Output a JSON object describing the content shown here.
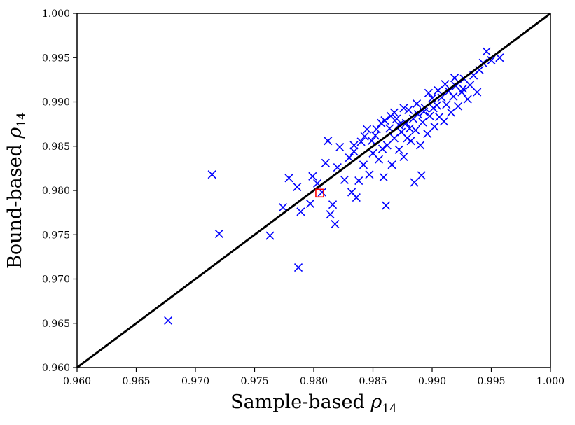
{
  "chart_data": {
    "type": "scatter",
    "title": "",
    "xlabel": {
      "main": "Sample-based ",
      "symbol": "ρ",
      "sub": "14"
    },
    "ylabel": {
      "main": "Bound-based ",
      "symbol": "ρ",
      "sub": "14"
    },
    "xlim": [
      0.96,
      1.0
    ],
    "ylim": [
      0.96,
      1.0
    ],
    "x_ticks": [
      "0.960",
      "0.965",
      "0.970",
      "0.975",
      "0.980",
      "0.985",
      "0.990",
      "0.995",
      "1.000"
    ],
    "y_ticks": [
      "0.960",
      "0.965",
      "0.970",
      "0.975",
      "0.980",
      "0.985",
      "0.990",
      "0.995",
      "1.000"
    ],
    "grid": false,
    "legend": "none",
    "reference_line": {
      "from": [
        0.96,
        0.96
      ],
      "to": [
        1.0,
        1.0
      ],
      "color": "#000000"
    },
    "series": [
      {
        "marker": "x",
        "color": "#0000ff",
        "points": [
          [
            0.9677,
            0.9653
          ],
          [
            0.9714,
            0.9818
          ],
          [
            0.972,
            0.9751
          ],
          [
            0.9763,
            0.9749
          ],
          [
            0.9774,
            0.9781
          ],
          [
            0.9779,
            0.9814
          ],
          [
            0.9787,
            0.9713
          ],
          [
            0.9786,
            0.9804
          ],
          [
            0.9789,
            0.9776
          ],
          [
            0.9797,
            0.9785
          ],
          [
            0.9799,
            0.9816
          ],
          [
            0.9803,
            0.9808
          ],
          [
            0.9807,
            0.9798
          ],
          [
            0.981,
            0.9831
          ],
          [
            0.9812,
            0.9856
          ],
          [
            0.9814,
            0.9773
          ],
          [
            0.9816,
            0.9784
          ],
          [
            0.9818,
            0.9762
          ],
          [
            0.982,
            0.9826
          ],
          [
            0.9822,
            0.9849
          ],
          [
            0.9826,
            0.9812
          ],
          [
            0.983,
            0.9837
          ],
          [
            0.9832,
            0.9798
          ],
          [
            0.9834,
            0.9844
          ],
          [
            0.9836,
            0.9792
          ],
          [
            0.9838,
            0.9811
          ],
          [
            0.984,
            0.9855
          ],
          [
            0.9842,
            0.9829
          ],
          [
            0.9845,
            0.9869
          ],
          [
            0.9847,
            0.9818
          ],
          [
            0.985,
            0.9842
          ],
          [
            0.9852,
            0.9862
          ],
          [
            0.9855,
            0.9835
          ],
          [
            0.9857,
            0.9876
          ],
          [
            0.9859,
            0.9815
          ],
          [
            0.9861,
            0.9783
          ],
          [
            0.9862,
            0.9851
          ],
          [
            0.9864,
            0.987
          ],
          [
            0.9866,
            0.9829
          ],
          [
            0.9868,
            0.9859
          ],
          [
            0.987,
            0.9881
          ],
          [
            0.9872,
            0.9846
          ],
          [
            0.9874,
            0.9866
          ],
          [
            0.9876,
            0.9838
          ],
          [
            0.9878,
            0.9876
          ],
          [
            0.988,
            0.9891
          ],
          [
            0.9882,
            0.9856
          ],
          [
            0.9884,
            0.9881
          ],
          [
            0.9885,
            0.9809
          ],
          [
            0.9886,
            0.9868
          ],
          [
            0.9888,
            0.9886
          ],
          [
            0.989,
            0.9851
          ],
          [
            0.9891,
            0.9817
          ],
          [
            0.9892,
            0.9877
          ],
          [
            0.9894,
            0.9893
          ],
          [
            0.9896,
            0.9864
          ],
          [
            0.9898,
            0.9884
          ],
          [
            0.99,
            0.9904
          ],
          [
            0.9902,
            0.9872
          ],
          [
            0.9904,
            0.9896
          ],
          [
            0.9906,
            0.9883
          ],
          [
            0.9908,
            0.9905
          ],
          [
            0.991,
            0.9878
          ],
          [
            0.9912,
            0.9897
          ],
          [
            0.9914,
            0.9912
          ],
          [
            0.9916,
            0.9888
          ],
          [
            0.9918,
            0.9906
          ],
          [
            0.992,
            0.9918
          ],
          [
            0.9922,
            0.9895
          ],
          [
            0.9925,
            0.9911
          ],
          [
            0.9927,
            0.9926
          ],
          [
            0.993,
            0.9903
          ],
          [
            0.9932,
            0.9919
          ],
          [
            0.9935,
            0.993
          ],
          [
            0.9938,
            0.9911
          ],
          [
            0.994,
            0.9936
          ],
          [
            0.9943,
            0.9944
          ],
          [
            0.9946,
            0.9957
          ],
          [
            0.995,
            0.9947
          ],
          [
            0.9957,
            0.995
          ],
          [
            0.986,
            0.9879
          ],
          [
            0.9872,
            0.9874
          ],
          [
            0.9881,
            0.987
          ],
          [
            0.9893,
            0.9889
          ],
          [
            0.9901,
            0.9893
          ],
          [
            0.9853,
            0.9869
          ],
          [
            0.9868,
            0.9888
          ],
          [
            0.9879,
            0.9859
          ],
          [
            0.9897,
            0.991
          ],
          [
            0.9911,
            0.992
          ],
          [
            0.9843,
            0.9861
          ],
          [
            0.9858,
            0.9847
          ],
          [
            0.9887,
            0.9898
          ],
          [
            0.9905,
            0.9913
          ],
          [
            0.9919,
            0.9927
          ],
          [
            0.9876,
            0.9893
          ],
          [
            0.9865,
            0.9884
          ],
          [
            0.9849,
            0.9856
          ],
          [
            0.9834,
            0.9851
          ],
          [
            0.9926,
            0.9915
          ]
        ]
      },
      {
        "marker": "square",
        "color": "#ff0000",
        "points": [
          [
            0.9805,
            0.9797
          ]
        ]
      }
    ]
  }
}
